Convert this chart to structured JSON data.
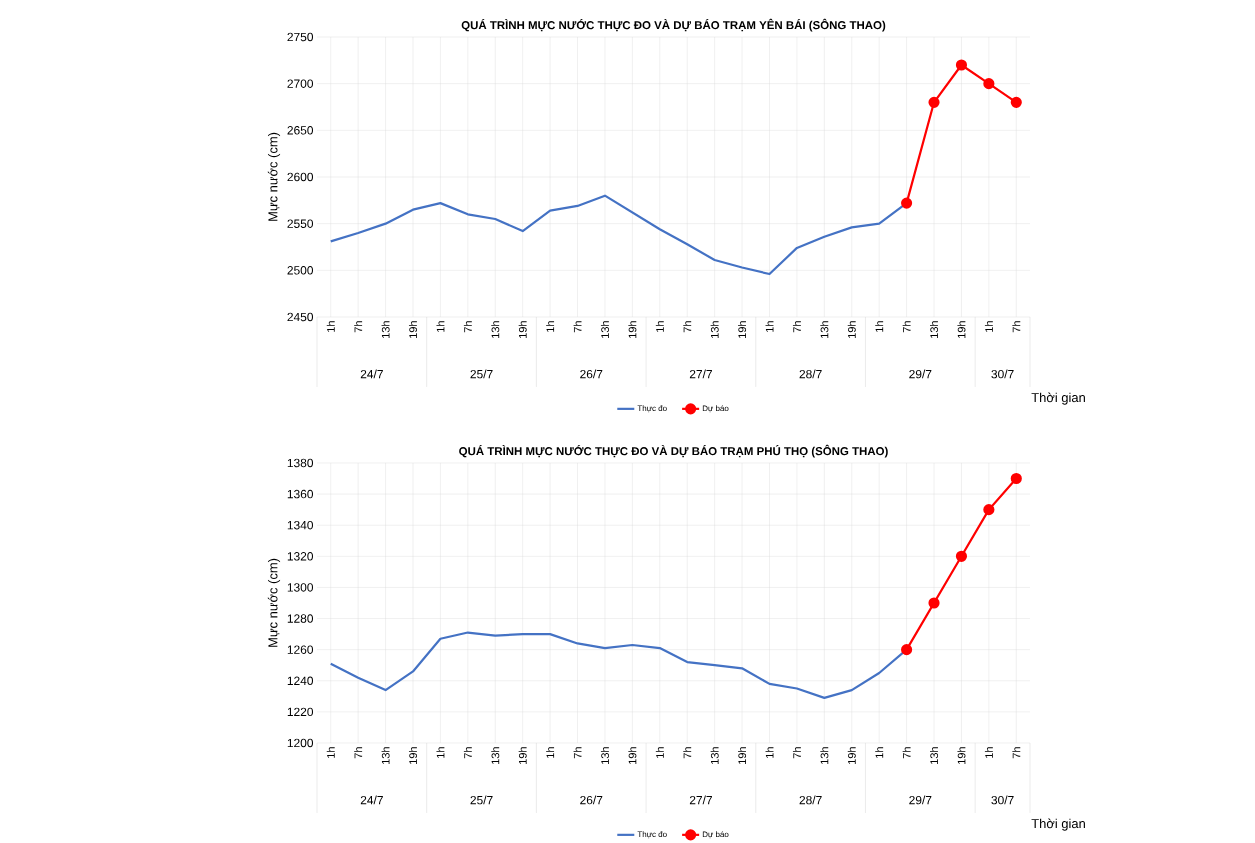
{
  "chart_data": [
    {
      "type": "line",
      "title": "QUÁ TRÌNH MỰC NƯỚC THỰC ĐO VÀ DỰ BÁO TRẠM YÊN BÁI (SÔNG THAO)",
      "ylabel": "Mực nước (cm)",
      "xlabel": "Thời gian",
      "categories": [
        "1h",
        "7h",
        "13h",
        "19h",
        "1h",
        "7h",
        "13h",
        "19h",
        "1h",
        "7h",
        "13h",
        "19h",
        "1h",
        "7h",
        "13h",
        "19h",
        "1h",
        "7h",
        "13h",
        "19h",
        "1h",
        "7h",
        "13h",
        "19h",
        "1h",
        "7h"
      ],
      "annotations": [
        "24/7",
        "25/7",
        "26/7",
        "27/7",
        "28/7",
        "29/7",
        "30/7"
      ],
      "series": [
        {
          "name": "Thực đo",
          "color": "#4472c4",
          "marker": "none",
          "values": [
            2531,
            2540,
            2550,
            2565,
            2572,
            2560,
            2555,
            2542,
            2564,
            2569,
            2580,
            2562,
            2544,
            2528,
            2511,
            2503,
            2496,
            2524,
            2536,
            2546,
            2550,
            2572,
            null,
            null,
            null,
            null
          ]
        },
        {
          "name": "Dự báo",
          "color": "#ff0000",
          "marker": "circle",
          "values": [
            null,
            null,
            null,
            null,
            null,
            null,
            null,
            null,
            null,
            null,
            null,
            null,
            null,
            null,
            null,
            null,
            null,
            null,
            null,
            null,
            null,
            2572,
            2680,
            2720,
            2700,
            2680
          ]
        }
      ],
      "ylim": [
        2450,
        2750
      ],
      "yticks": [
        2450,
        2500,
        2550,
        2600,
        2650,
        2700,
        2750
      ],
      "grid": true,
      "legend": "bottom"
    },
    {
      "type": "line",
      "title": "QUÁ TRÌNH MỰC NƯỚC THỰC ĐO VÀ DỰ BÁO TRẠM PHÚ THỌ (SÔNG THAO)",
      "ylabel": "Mực nước (cm)",
      "xlabel": "Thời gian",
      "categories": [
        "1h",
        "7h",
        "13h",
        "19h",
        "1h",
        "7h",
        "13h",
        "19h",
        "1h",
        "7h",
        "13h",
        "19h",
        "1h",
        "7h",
        "13h",
        "19h",
        "1h",
        "7h",
        "13h",
        "19h",
        "1h",
        "7h",
        "13h",
        "19h",
        "1h",
        "7h"
      ],
      "annotations": [
        "24/7",
        "25/7",
        "26/7",
        "27/7",
        "28/7",
        "29/7",
        "30/7"
      ],
      "series": [
        {
          "name": "Thực đo",
          "color": "#4472c4",
          "marker": "none",
          "values": [
            1251,
            1242,
            1234,
            1246,
            1267,
            1271,
            1269,
            1270,
            1270,
            1264,
            1261,
            1263,
            1261,
            1252,
            1250,
            1248,
            1238,
            1235,
            1229,
            1234,
            1245,
            1260,
            null,
            null,
            null,
            null
          ]
        },
        {
          "name": "Dự báo",
          "color": "#ff0000",
          "marker": "circle",
          "values": [
            null,
            null,
            null,
            null,
            null,
            null,
            null,
            null,
            null,
            null,
            null,
            null,
            null,
            null,
            null,
            null,
            null,
            null,
            null,
            null,
            null,
            1260,
            1290,
            1320,
            1350,
            1370
          ]
        }
      ],
      "ylim": [
        1200,
        1380
      ],
      "yticks": [
        1200,
        1220,
        1240,
        1260,
        1280,
        1300,
        1320,
        1340,
        1360,
        1380
      ],
      "grid": true,
      "legend": "bottom"
    }
  ]
}
